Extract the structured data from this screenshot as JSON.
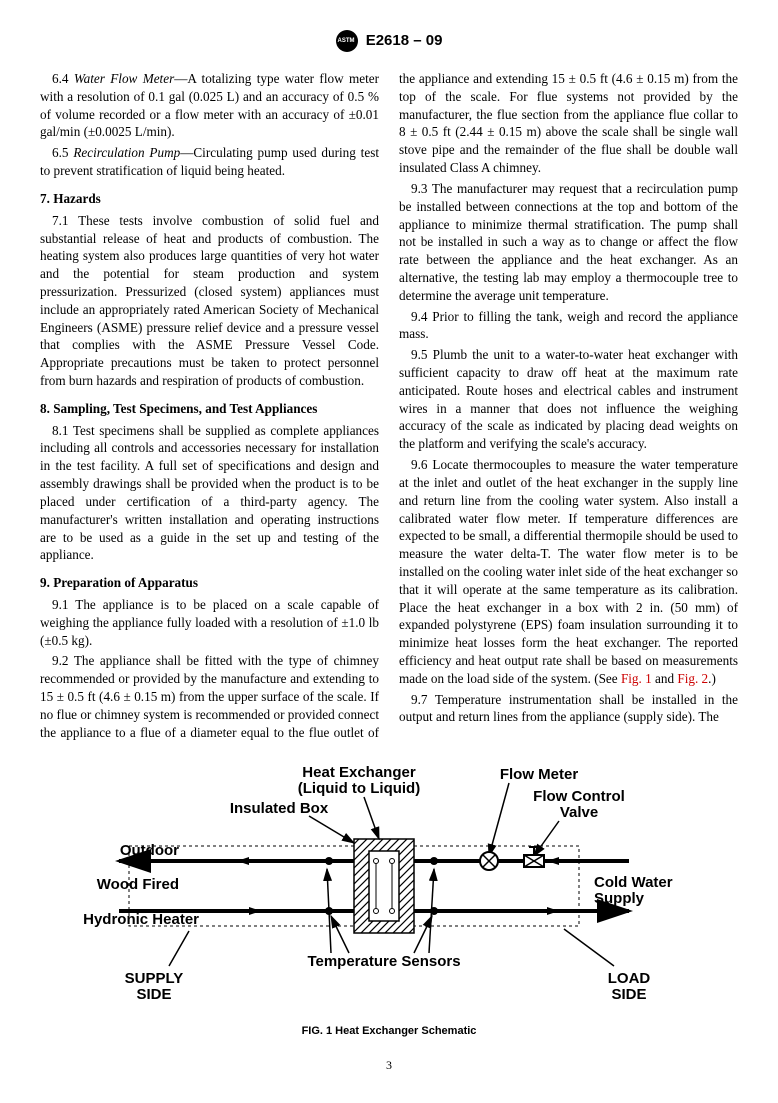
{
  "header": {
    "designation": "E2618 – 09"
  },
  "body": {
    "p64": "6.4 <span class='italic'>Water Flow Meter</span>—A totalizing type water flow meter with a resolution of 0.1 gal (0.025 L) and an accuracy of 0.5 % of volume recorded or a flow meter with an accuracy of ±0.01 gal/min (±0.0025 L/min).",
    "p65": "6.5 <span class='italic'>Recirculation Pump</span>—Circulating pump used during test to prevent stratification of liquid being heated.",
    "h7": "7. Hazards",
    "p71": "7.1 These tests involve combustion of solid fuel and substantial release of heat and products of combustion. The heating system also produces large quantities of very hot water and the potential for steam production and system pressurization. Pressurized (closed system) appliances must include an appropriately rated American Society of Mechanical Engineers (ASME) pressure relief device and a pressure vessel that complies with the ASME Pressure Vessel Code. Appropriate precautions must be taken to protect personnel from burn hazards and respiration of products of combustion.",
    "h8": "8. Sampling, Test Specimens, and Test Appliances",
    "p81": "8.1 Test specimens shall be supplied as complete appliances including all controls and accessories necessary for installation in the test facility. A full set of specifications and design and assembly drawings shall be provided when the product is to be placed under certification of a third-party agency. The manufacturer's written installation and operating instructions are to be used as a guide in the set up and testing of the appliance.",
    "h9": "9. Preparation of Apparatus",
    "p91": "9.1 The appliance is to be placed on a scale capable of weighing the appliance fully loaded with a resolution of ±1.0 lb (±0.5 kg).",
    "p92": "9.2 The appliance shall be fitted with the type of chimney recommended or provided by the manufacture and extending to 15 ± 0.5 ft (4.6 ± 0.15 m) from the upper surface of the scale. If no flue or chimney system is recommended or provided connect the appliance to a flue of a diameter equal to the flue outlet of the appliance and extending 15 ± 0.5 ft (4.6 ± 0.15 m) from the top of the scale. For flue systems not provided by the manufacturer, the flue section from the appliance flue collar to 8 ± 0.5 ft (2.44 ± 0.15 m) above the scale shall be single wall stove pipe and the remainder of the flue shall be double wall insulated Class A chimney.",
    "p93": "9.3 The manufacturer may request that a recirculation pump be installed between connections at the top and bottom of the appliance to minimize thermal stratification. The pump shall not be installed in such a way as to change or affect the flow rate between the appliance and the heat exchanger. As an alternative, the testing lab may employ a thermocouple tree to determine the average unit temperature.",
    "p94": "9.4 Prior to filling the tank, weigh and record the appliance mass.",
    "p95": "9.5 Plumb the unit to a water-to-water heat exchanger with sufficient capacity to draw off heat at the maximum rate anticipated. Route hoses and electrical cables and instrument wires in a manner that does not influence the weighing accuracy of the scale as indicated by placing dead weights on the platform and verifying the scale's accuracy.",
    "p96": "9.6 Locate thermocouples to measure the water temperature at the inlet and outlet of the heat exchanger in the supply line and return line from the cooling water system. Also install a calibrated water flow meter. If temperature differences are expected to be small, a differential thermopile should be used to measure the water delta-T. The water flow meter is to be installed on the cooling water inlet side of the heat exchanger so that it will operate at the same temperature as its calibration. Place the heat exchanger in a box with 2 in. (50 mm) of expanded polystyrene (EPS) foam insulation surrounding it to minimize heat losses form the heat exchanger. The reported efficiency and heat output rate shall be based on measurements made on the load side of the system. (See <span class='reflink'>Fig. 1</span> and <span class='reflink'>Fig. 2</span>.)",
    "p97": "9.7 Temperature instrumentation shall be installed in the output and return lines from the appliance (supply side). The"
  },
  "figure": {
    "caption": "FIG. 1 Heat Exchanger Schematic",
    "labels": {
      "heatExchanger": "Heat Exchanger",
      "heatExchanger2": "(Liquid to Liquid)",
      "insulatedBox": "Insulated Box",
      "flowMeter": "Flow Meter",
      "flowControlValve": "Flow Control",
      "flowControlValve2": "Valve",
      "outdoor1": "Outdoor",
      "outdoor2": "Wood Fired",
      "outdoor3": "Hydronic Heater",
      "coldWater1": "Cold Water",
      "coldWater2": "Supply",
      "tempSensors": "Temperature Sensors",
      "supplySide": "SUPPLY",
      "supplySide2": "SIDE",
      "loadSide": "LOAD",
      "loadSide2": "SIDE"
    },
    "colors": {
      "line": "#000000",
      "bg": "#ffffff"
    }
  },
  "pagenum": "3"
}
